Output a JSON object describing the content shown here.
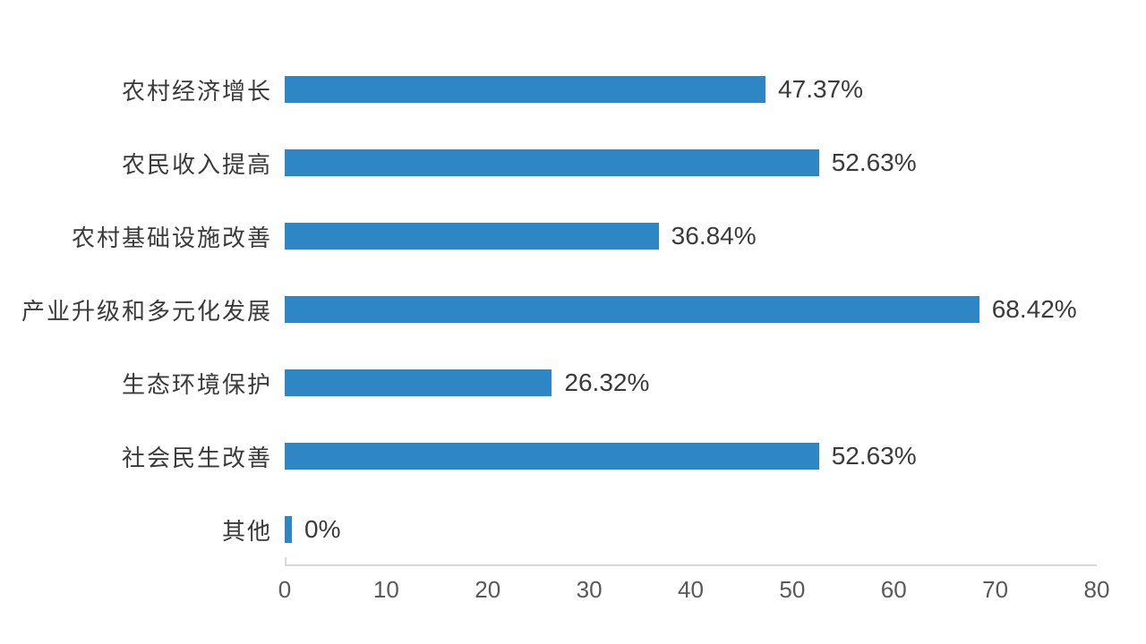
{
  "chart_data": {
    "type": "bar",
    "orientation": "horizontal",
    "title": "",
    "xlabel": "",
    "ylabel": "",
    "categories": [
      "农村经济增长",
      "农民收入提高",
      "农村基础设施改善",
      "产业升级和多元化发展",
      "生态环境保护",
      "社会民生改善",
      "其他"
    ],
    "values": [
      47.37,
      52.63,
      36.84,
      68.42,
      26.32,
      52.63,
      0
    ],
    "value_labels": [
      "47.37%",
      "52.63%",
      "36.84%",
      "68.42%",
      "26.32%",
      "52.63%",
      "0%"
    ],
    "xlim": [
      0,
      80
    ],
    "x_ticks": [
      "0",
      "10",
      "20",
      "30",
      "40",
      "50",
      "60",
      "70",
      "80"
    ],
    "grid": false,
    "legend": "none",
    "colors": {
      "bar": "#2E86C5",
      "axis": "#D9D9D9",
      "category_text": "#3A3A3A",
      "value_text": "#3A3A3A",
      "tick_text": "#595959"
    }
  }
}
